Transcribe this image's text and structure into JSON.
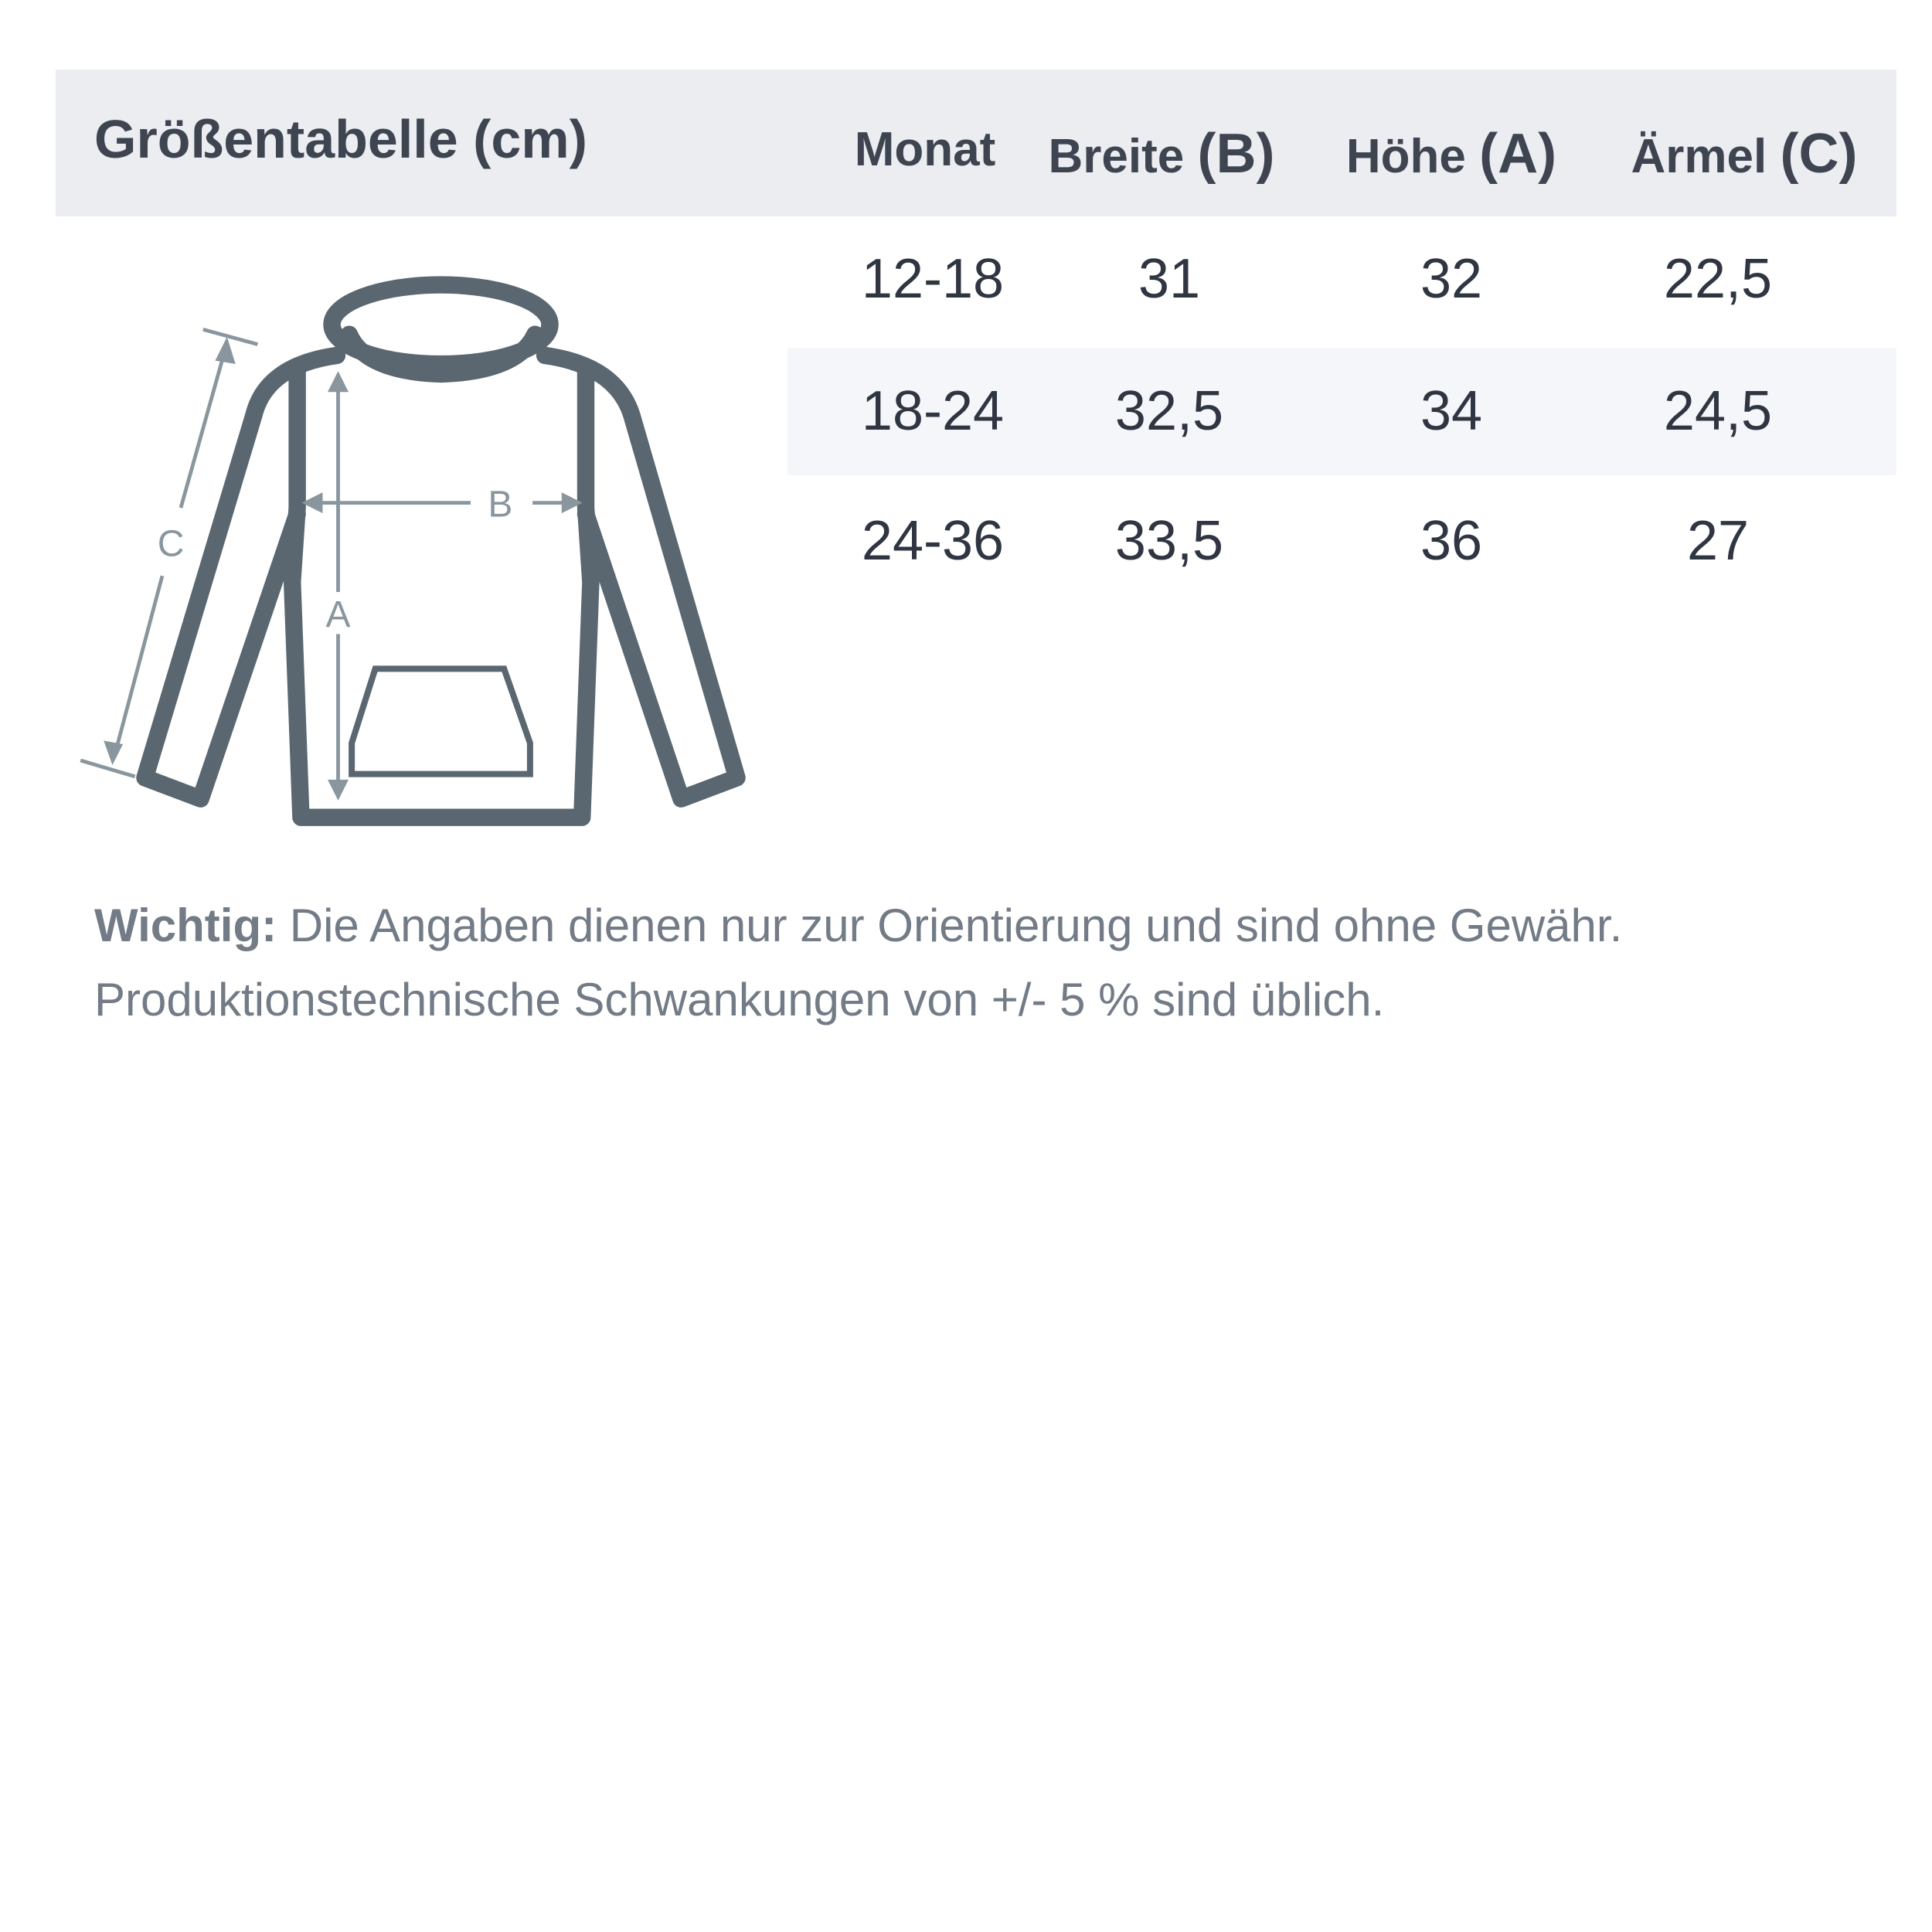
{
  "title": "Größentabelle (cm)",
  "columns": [
    {
      "label": "Monat",
      "suffix": ""
    },
    {
      "label": "Breite",
      "suffix": "(B)"
    },
    {
      "label": "Höhe",
      "suffix": "(A)"
    },
    {
      "label": "Ärmel",
      "suffix": "(C)"
    }
  ],
  "rows": [
    [
      "12-18",
      "31",
      "32",
      "22,5"
    ],
    [
      "18-24",
      "32,5",
      "34",
      "24,5"
    ],
    [
      "24-36",
      "33,5",
      "36",
      "27"
    ]
  ],
  "diagram": {
    "label_a": "A",
    "label_b": "B",
    "label_c": "C",
    "icon": "hoodie-measurement-diagram"
  },
  "note": {
    "bold": "Wichtig:",
    "line1": " Die Angaben dienen nur zur Orientierung und sind ohne Gewähr.",
    "line2": "Produktionstechnische Schwankungen von +/- 5 % sind üblich."
  },
  "colors": {
    "header_bg": "#ebedf1",
    "stripe_bg": "#f5f6f9",
    "outline": "#5a6770",
    "measure": "#8a969e"
  }
}
